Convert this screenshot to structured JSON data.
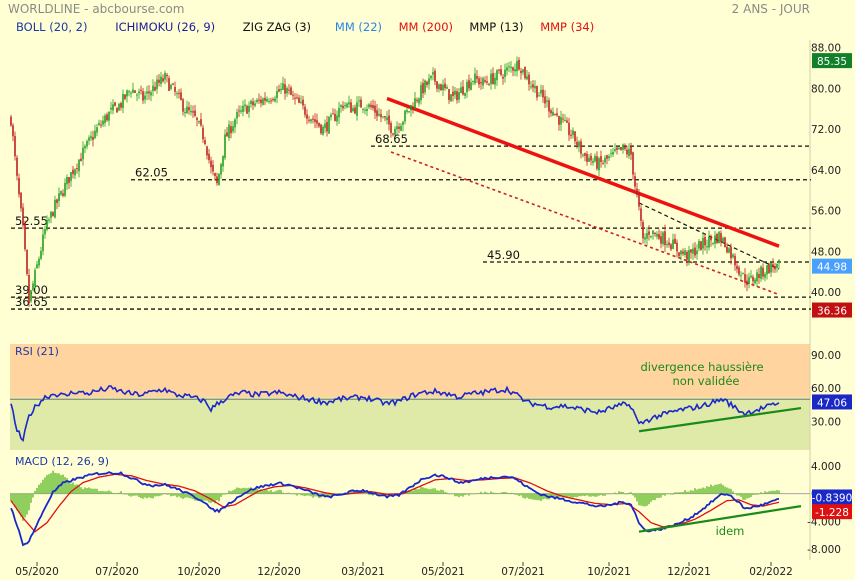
{
  "header": {
    "source": "WORLDLINE - abcbourse.com",
    "period": "2 ANS - JOUR"
  },
  "legend": [
    {
      "label": "BOLL (20, 2)",
      "color": "#1a3aa8"
    },
    {
      "label": "ICHIMOKU (26, 9)",
      "color": "#1a1aa0"
    },
    {
      "label": "ZIG ZAG (3)",
      "color": "#111111"
    },
    {
      "label": "MM (22)",
      "color": "#2a86e6"
    },
    {
      "label": "MM (200)",
      "color": "#e01010"
    },
    {
      "label": "MMP (13)",
      "color": "#111111"
    },
    {
      "label": "MMP (34)",
      "color": "#e01010"
    }
  ],
  "colors": {
    "background": "#ffffd3",
    "up": "#20a020",
    "down": "#c02020",
    "trend": "#ee1111",
    "level": "#111111",
    "rsi_line": "#1a28c8",
    "macd_line": "#1a28c8",
    "signal_line": "#e01010",
    "hist": "#6fbf3a",
    "support": "#1a8a1a",
    "price_tag": "#4aa0ff",
    "last_high_tag": "#10802a",
    "low_tag": "#c01010"
  },
  "chart_data": [
    {
      "type": "candlestick",
      "name": "price",
      "ylim": [
        34.5,
        89.5
      ],
      "y_ticks": [
        40,
        48,
        56,
        64,
        72,
        80,
        88
      ],
      "y_tick_labels": [
        "40.00",
        "48.00",
        "56.00",
        "64.00",
        "72.00",
        "80.00",
        "88.00"
      ],
      "x_tick_labels": [
        "05/2020",
        "07/2020",
        "10/2020",
        "12/2020",
        "03/2021",
        "05/2021",
        "07/2021",
        "10/2021",
        "12/2021",
        "02/2022"
      ],
      "x_tick_index": [
        13,
        53,
        94,
        134,
        176,
        216,
        256,
        299,
        339,
        380
      ],
      "n_sessions": 400,
      "anchors": [
        [
          0,
          74
        ],
        [
          3,
          62
        ],
        [
          6,
          52
        ],
        [
          9,
          38
        ],
        [
          13,
          45
        ],
        [
          17,
          52
        ],
        [
          21,
          56
        ],
        [
          26,
          60
        ],
        [
          31,
          64
        ],
        [
          37,
          68
        ],
        [
          43,
          72
        ],
        [
          49,
          75
        ],
        [
          55,
          77
        ],
        [
          60,
          80
        ],
        [
          66,
          78
        ],
        [
          71,
          80
        ],
        [
          77,
          82
        ],
        [
          82,
          79
        ],
        [
          87,
          76
        ],
        [
          92,
          74
        ],
        [
          97,
          70
        ],
        [
          100,
          64
        ],
        [
          103,
          61
        ],
        [
          107,
          70
        ],
        [
          112,
          74
        ],
        [
          117,
          76
        ],
        [
          122,
          77
        ],
        [
          127,
          78
        ],
        [
          132,
          79
        ],
        [
          137,
          80
        ],
        [
          141,
          78
        ],
        [
          146,
          76
        ],
        [
          151,
          74
        ],
        [
          156,
          72
        ],
        [
          161,
          74
        ],
        [
          166,
          77
        ],
        [
          171,
          76
        ],
        [
          176,
          77
        ],
        [
          181,
          76
        ],
        [
          186,
          74
        ],
        [
          191,
          72
        ],
        [
          196,
          74
        ],
        [
          201,
          77
        ],
        [
          206,
          80
        ],
        [
          211,
          82
        ],
        [
          216,
          80
        ],
        [
          221,
          78
        ],
        [
          226,
          80
        ],
        [
          231,
          82
        ],
        [
          236,
          81
        ],
        [
          241,
          82
        ],
        [
          246,
          83
        ],
        [
          250,
          84
        ],
        [
          254,
          85
        ],
        [
          258,
          82
        ],
        [
          262,
          80
        ],
        [
          266,
          78
        ],
        [
          270,
          76
        ],
        [
          274,
          74
        ],
        [
          278,
          72
        ],
        [
          282,
          70
        ],
        [
          286,
          67
        ],
        [
          290,
          66
        ],
        [
          294,
          65
        ],
        [
          298,
          66
        ],
        [
          302,
          67
        ],
        [
          306,
          68
        ],
        [
          310,
          67
        ],
        [
          312,
          61
        ],
        [
          314,
          56
        ],
        [
          316,
          50
        ],
        [
          319,
          52
        ],
        [
          324,
          51
        ],
        [
          329,
          50
        ],
        [
          334,
          48
        ],
        [
          339,
          47
        ],
        [
          344,
          49
        ],
        [
          349,
          50
        ],
        [
          354,
          51
        ],
        [
          358,
          49
        ],
        [
          362,
          46
        ],
        [
          366,
          43
        ],
        [
          369,
          42
        ],
        [
          372,
          43
        ],
        [
          376,
          44
        ],
        [
          380,
          45
        ],
        [
          384,
          44.98
        ]
      ],
      "current_price": "44.98",
      "last_high": "85.35",
      "low": "36.36",
      "levels": [
        {
          "value": 68.65,
          "label": "68.65",
          "x0": 180,
          "x1": 400
        },
        {
          "value": 62.05,
          "label": "62.05",
          "x0": 60,
          "x1": 400
        },
        {
          "value": 52.55,
          "label": "52.55",
          "x0": 0,
          "x1": 400
        },
        {
          "value": 45.9,
          "label": "45.90",
          "x0": 236,
          "x1": 400
        },
        {
          "value": 39.0,
          "label": "39.00",
          "x0": 0,
          "x1": 400
        },
        {
          "value": 36.65,
          "label": "36.65",
          "x0": 0,
          "x1": 400
        }
      ],
      "trend_lines": [
        {
          "style": "solid",
          "from": [
            188,
            78.0
          ],
          "to": [
            384,
            49.0
          ]
        },
        {
          "style": "dashed",
          "from": [
            190,
            67.5
          ],
          "to": [
            384,
            39.5
          ]
        },
        {
          "style": "dashed-black",
          "from": [
            314,
            57.5
          ],
          "to": [
            384,
            44.5
          ]
        }
      ]
    },
    {
      "type": "line",
      "name": "RSI (21)",
      "ylim": [
        4,
        100
      ],
      "y_ticks": [
        30,
        60,
        90
      ],
      "y_tick_labels": [
        "30.00",
        "60.00",
        "90.00"
      ],
      "threshold": 50,
      "current_value": "47.06",
      "anchors": [
        [
          0,
          45
        ],
        [
          3,
          22
        ],
        [
          6,
          12
        ],
        [
          9,
          35
        ],
        [
          13,
          45
        ],
        [
          17,
          52
        ],
        [
          22,
          55
        ],
        [
          27,
          53
        ],
        [
          32,
          57
        ],
        [
          38,
          55
        ],
        [
          44,
          58
        ],
        [
          50,
          60
        ],
        [
          55,
          57
        ],
        [
          60,
          55
        ],
        [
          66,
          54
        ],
        [
          71,
          57
        ],
        [
          77,
          59
        ],
        [
          82,
          54
        ],
        [
          87,
          53
        ],
        [
          92,
          51
        ],
        [
          97,
          48
        ],
        [
          100,
          41
        ],
        [
          104,
          47
        ],
        [
          110,
          53
        ],
        [
          116,
          56
        ],
        [
          122,
          54
        ],
        [
          128,
          55
        ],
        [
          134,
          56
        ],
        [
          140,
          53
        ],
        [
          146,
          51
        ],
        [
          152,
          49
        ],
        [
          158,
          47
        ],
        [
          164,
          50
        ],
        [
          170,
          51
        ],
        [
          176,
          52
        ],
        [
          182,
          49
        ],
        [
          188,
          46
        ],
        [
          194,
          48
        ],
        [
          200,
          53
        ],
        [
          206,
          56
        ],
        [
          212,
          57
        ],
        [
          218,
          55
        ],
        [
          224,
          52
        ],
        [
          230,
          55
        ],
        [
          236,
          56
        ],
        [
          242,
          58
        ],
        [
          248,
          59
        ],
        [
          252,
          55
        ],
        [
          258,
          47
        ],
        [
          264,
          45
        ],
        [
          270,
          43
        ],
        [
          276,
          44
        ],
        [
          282,
          42
        ],
        [
          288,
          40
        ],
        [
          294,
          38
        ],
        [
          300,
          42
        ],
        [
          306,
          45
        ],
        [
          310,
          44
        ],
        [
          312,
          36
        ],
        [
          314,
          27
        ],
        [
          317,
          30
        ],
        [
          322,
          34
        ],
        [
          328,
          37
        ],
        [
          334,
          40
        ],
        [
          340,
          42
        ],
        [
          346,
          44
        ],
        [
          352,
          48
        ],
        [
          356,
          50
        ],
        [
          360,
          45
        ],
        [
          364,
          40
        ],
        [
          367,
          37
        ],
        [
          370,
          39
        ],
        [
          376,
          42
        ],
        [
          380,
          44
        ],
        [
          384,
          47.06
        ]
      ],
      "annotation": [
        "divergence haussière",
        "non validée"
      ],
      "support_line": {
        "from": [
          314,
          21
        ],
        "to": [
          395,
          42
        ]
      }
    },
    {
      "type": "line",
      "name": "MACD (12, 26, 9)",
      "ylim": [
        -9.6,
        5.6
      ],
      "y_ticks": [
        -8,
        -4,
        0,
        4
      ],
      "y_tick_labels": [
        "-8.000",
        "-4.000",
        "0.000",
        "4.000"
      ],
      "macd_value": "-0.8390",
      "signal_value": "-1.228",
      "macd": [
        [
          0,
          -2.0
        ],
        [
          3,
          -4.5
        ],
        [
          6,
          -7.5
        ],
        [
          9,
          -6.8
        ],
        [
          13,
          -4.5
        ],
        [
          17,
          -2.0
        ],
        [
          21,
          0.2
        ],
        [
          26,
          1.5
        ],
        [
          31,
          2.0
        ],
        [
          37,
          2.5
        ],
        [
          43,
          2.9
        ],
        [
          49,
          3.0
        ],
        [
          55,
          3.0
        ],
        [
          60,
          2.3
        ],
        [
          66,
          1.5
        ],
        [
          71,
          1.2
        ],
        [
          77,
          1.3
        ],
        [
          82,
          0.8
        ],
        [
          87,
          0.2
        ],
        [
          92,
          -0.5
        ],
        [
          97,
          -1.2
        ],
        [
          100,
          -2.3
        ],
        [
          104,
          -2.5
        ],
        [
          110,
          -1.2
        ],
        [
          116,
          0.0
        ],
        [
          122,
          0.8
        ],
        [
          128,
          1.2
        ],
        [
          134,
          1.5
        ],
        [
          140,
          1.2
        ],
        [
          146,
          0.6
        ],
        [
          152,
          0.0
        ],
        [
          158,
          -0.5
        ],
        [
          164,
          -0.2
        ],
        [
          170,
          0.3
        ],
        [
          176,
          0.5
        ],
        [
          182,
          0.0
        ],
        [
          188,
          -0.5
        ],
        [
          194,
          -0.2
        ],
        [
          200,
          1.0
        ],
        [
          206,
          2.2
        ],
        [
          212,
          2.7
        ],
        [
          218,
          2.4
        ],
        [
          224,
          1.6
        ],
        [
          230,
          1.8
        ],
        [
          236,
          2.2
        ],
        [
          242,
          2.4
        ],
        [
          248,
          2.5
        ],
        [
          252,
          2.2
        ],
        [
          258,
          1.0
        ],
        [
          264,
          0.0
        ],
        [
          270,
          -0.5
        ],
        [
          276,
          -0.8
        ],
        [
          282,
          -1.2
        ],
        [
          288,
          -1.5
        ],
        [
          294,
          -1.9
        ],
        [
          300,
          -1.6
        ],
        [
          306,
          -1.2
        ],
        [
          310,
          -1.5
        ],
        [
          312,
          -2.8
        ],
        [
          314,
          -4.3
        ],
        [
          317,
          -5.3
        ],
        [
          322,
          -5.3
        ],
        [
          328,
          -4.9
        ],
        [
          334,
          -4.3
        ],
        [
          340,
          -3.4
        ],
        [
          346,
          -2.2
        ],
        [
          352,
          -0.8
        ],
        [
          356,
          0.0
        ],
        [
          360,
          -0.3
        ],
        [
          364,
          -1.3
        ],
        [
          367,
          -2.2
        ],
        [
          370,
          -2.0
        ],
        [
          376,
          -1.6
        ],
        [
          380,
          -1.2
        ],
        [
          384,
          -0.839
        ]
      ],
      "signal": [
        [
          0,
          -1.0
        ],
        [
          6,
          -3.5
        ],
        [
          12,
          -5.5
        ],
        [
          18,
          -4.2
        ],
        [
          24,
          -1.8
        ],
        [
          30,
          0.3
        ],
        [
          36,
          1.6
        ],
        [
          44,
          2.4
        ],
        [
          52,
          2.8
        ],
        [
          60,
          2.6
        ],
        [
          68,
          1.9
        ],
        [
          76,
          1.4
        ],
        [
          84,
          1.1
        ],
        [
          92,
          0.4
        ],
        [
          100,
          -0.8
        ],
        [
          106,
          -1.9
        ],
        [
          112,
          -1.6
        ],
        [
          118,
          -0.6
        ],
        [
          124,
          0.4
        ],
        [
          132,
          1.0
        ],
        [
          140,
          1.2
        ],
        [
          148,
          0.8
        ],
        [
          156,
          0.2
        ],
        [
          164,
          -0.2
        ],
        [
          172,
          0.1
        ],
        [
          180,
          0.3
        ],
        [
          188,
          -0.1
        ],
        [
          196,
          0.0
        ],
        [
          204,
          1.0
        ],
        [
          212,
          2.0
        ],
        [
          220,
          2.2
        ],
        [
          228,
          1.9
        ],
        [
          236,
          2.0
        ],
        [
          244,
          2.2
        ],
        [
          252,
          2.3
        ],
        [
          260,
          1.5
        ],
        [
          268,
          0.4
        ],
        [
          276,
          -0.4
        ],
        [
          284,
          -0.9
        ],
        [
          292,
          -1.4
        ],
        [
          300,
          -1.6
        ],
        [
          308,
          -1.4
        ],
        [
          314,
          -2.6
        ],
        [
          320,
          -4.2
        ],
        [
          326,
          -4.8
        ],
        [
          334,
          -4.5
        ],
        [
          342,
          -3.7
        ],
        [
          350,
          -2.4
        ],
        [
          358,
          -1.0
        ],
        [
          364,
          -0.9
        ],
        [
          370,
          -1.6
        ],
        [
          376,
          -1.8
        ],
        [
          384,
          -1.228
        ]
      ],
      "annotation": "idem",
      "support_line": {
        "from": [
          314,
          -5.5
        ],
        "to": [
          395,
          -1.8
        ]
      }
    }
  ]
}
